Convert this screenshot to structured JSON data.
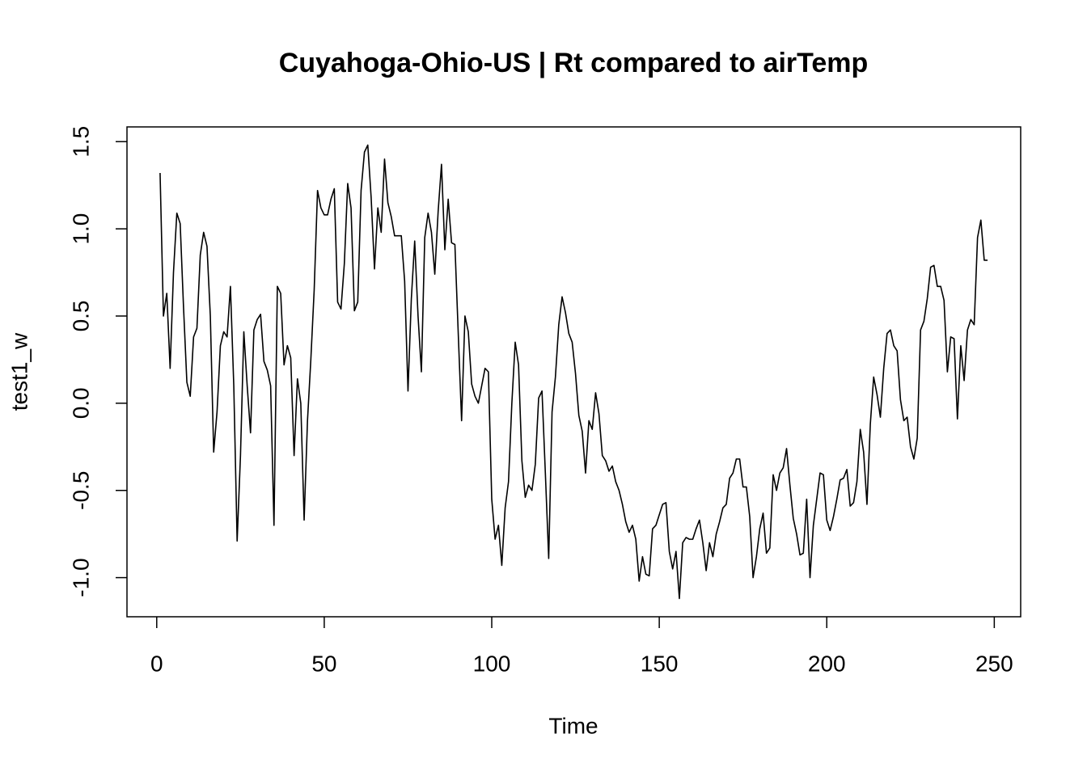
{
  "chart_data": {
    "type": "line",
    "title": "Cuyahoga-Ohio-US | Rt compared to airTemp",
    "xlabel": "Time",
    "ylabel": "test1_w",
    "color": "#000000",
    "x": [
      1,
      2,
      3,
      4,
      5,
      6,
      7,
      8,
      9,
      10,
      11,
      12,
      13,
      14,
      15,
      16,
      17,
      18,
      19,
      20,
      21,
      22,
      23,
      24,
      25,
      26,
      27,
      28,
      29,
      30,
      31,
      32,
      33,
      34,
      35,
      36,
      37,
      38,
      39,
      40,
      41,
      42,
      43,
      44,
      45,
      46,
      47,
      48,
      49,
      50,
      51,
      52,
      53,
      54,
      55,
      56,
      57,
      58,
      59,
      60,
      61,
      62,
      63,
      64,
      65,
      66,
      67,
      68,
      69,
      70,
      71,
      72,
      73,
      74,
      75,
      76,
      77,
      78,
      79,
      80,
      81,
      82,
      83,
      84,
      85,
      86,
      87,
      88,
      89,
      90,
      91,
      92,
      93,
      94,
      95,
      96,
      97,
      98,
      99,
      100,
      101,
      102,
      103,
      104,
      105,
      106,
      107,
      108,
      109,
      110,
      111,
      112,
      113,
      114,
      115,
      116,
      117,
      118,
      119,
      120,
      121,
      122,
      123,
      124,
      125,
      126,
      127,
      128,
      129,
      130,
      131,
      132,
      133,
      134,
      135,
      136,
      137,
      138,
      139,
      140,
      141,
      142,
      143,
      144,
      145,
      146,
      147,
      148,
      149,
      150,
      151,
      152,
      153,
      154,
      155,
      156,
      157,
      158,
      159,
      160,
      161,
      162,
      163,
      164,
      165,
      166,
      167,
      168,
      169,
      170,
      171,
      172,
      173,
      174,
      175,
      176,
      177,
      178,
      179,
      180,
      181,
      182,
      183,
      184,
      185,
      186,
      187,
      188,
      189,
      190,
      191,
      192,
      193,
      194,
      195,
      196,
      197,
      198,
      199,
      200,
      201,
      202,
      203,
      204,
      205,
      206,
      207,
      208,
      209,
      210,
      211,
      212,
      213,
      214,
      215,
      216,
      217,
      218,
      219,
      220,
      221,
      222,
      223,
      224,
      225,
      226,
      227,
      228,
      229,
      230,
      231,
      232,
      233,
      234,
      235,
      236,
      237,
      238,
      239,
      240,
      241,
      242,
      243,
      244,
      245,
      246,
      247,
      248
    ],
    "values": [
      1.32,
      0.5,
      0.63,
      0.2,
      0.75,
      1.09,
      1.03,
      0.55,
      0.12,
      0.04,
      0.38,
      0.43,
      0.85,
      0.98,
      0.9,
      0.5,
      -0.28,
      -0.05,
      0.33,
      0.41,
      0.38,
      0.67,
      0.1,
      -0.79,
      -0.3,
      0.41,
      0.1,
      -0.17,
      0.42,
      0.48,
      0.51,
      0.24,
      0.19,
      0.1,
      -0.7,
      0.67,
      0.63,
      0.22,
      0.33,
      0.26,
      -0.3,
      0.14,
      0.0,
      -0.67,
      -0.1,
      0.25,
      0.65,
      1.22,
      1.12,
      1.08,
      1.08,
      1.17,
      1.23,
      0.58,
      0.54,
      0.8,
      1.26,
      1.12,
      0.53,
      0.58,
      1.22,
      1.44,
      1.48,
      1.18,
      0.77,
      1.12,
      0.98,
      1.4,
      1.15,
      1.07,
      0.96,
      0.96,
      0.96,
      0.7,
      0.07,
      0.6,
      0.93,
      0.5,
      0.18,
      0.95,
      1.09,
      0.98,
      0.74,
      1.1,
      1.37,
      0.88,
      1.17,
      0.92,
      0.91,
      0.4,
      -0.1,
      0.5,
      0.41,
      0.11,
      0.04,
      0.0,
      0.1,
      0.2,
      0.18,
      -0.55,
      -0.78,
      -0.7,
      -0.93,
      -0.6,
      -0.45,
      0.0,
      0.35,
      0.22,
      -0.33,
      -0.54,
      -0.47,
      -0.5,
      -0.35,
      0.03,
      0.07,
      -0.4,
      -0.89,
      -0.05,
      0.15,
      0.45,
      0.61,
      0.52,
      0.4,
      0.35,
      0.17,
      -0.07,
      -0.16,
      -0.4,
      -0.1,
      -0.15,
      0.06,
      -0.06,
      -0.3,
      -0.33,
      -0.39,
      -0.36,
      -0.45,
      -0.5,
      -0.58,
      -0.68,
      -0.74,
      -0.7,
      -0.78,
      -1.02,
      -0.88,
      -0.98,
      -0.99,
      -0.72,
      -0.7,
      -0.64,
      -0.58,
      -0.57,
      -0.85,
      -0.95,
      -0.85,
      -1.12,
      -0.8,
      -0.77,
      -0.78,
      -0.78,
      -0.72,
      -0.67,
      -0.8,
      -0.96,
      -0.8,
      -0.88,
      -0.75,
      -0.68,
      -0.6,
      -0.58,
      -0.43,
      -0.4,
      -0.32,
      -0.32,
      -0.48,
      -0.48,
      -0.65,
      -1.0,
      -0.88,
      -0.72,
      -0.63,
      -0.86,
      -0.83,
      -0.41,
      -0.5,
      -0.4,
      -0.37,
      -0.26,
      -0.47,
      -0.66,
      -0.75,
      -0.87,
      -0.86,
      -0.55,
      -1.0,
      -0.7,
      -0.55,
      -0.4,
      -0.41,
      -0.67,
      -0.73,
      -0.65,
      -0.55,
      -0.44,
      -0.43,
      -0.38,
      -0.59,
      -0.57,
      -0.45,
      -0.15,
      -0.28,
      -0.58,
      -0.12,
      0.15,
      0.05,
      -0.08,
      0.2,
      0.4,
      0.42,
      0.33,
      0.3,
      0.02,
      -0.1,
      -0.08,
      -0.25,
      -0.32,
      -0.2,
      0.42,
      0.47,
      0.6,
      0.78,
      0.79,
      0.67,
      0.67,
      0.59,
      0.18,
      0.38,
      0.37,
      -0.09,
      0.33,
      0.13,
      0.42,
      0.48,
      0.45,
      0.95,
      1.05,
      0.82,
      0.82
    ],
    "xlim": [
      -8.88,
      257.88
    ],
    "xticks": [
      0,
      50,
      100,
      150,
      200,
      250
    ],
    "ylim": [
      -1.2244,
      1.5844
    ],
    "yticks": [
      {
        "value": -1,
        "label": "-1.0"
      },
      -0.5,
      {
        "value": 0,
        "label": "0.0"
      },
      0.5,
      {
        "value": 1,
        "label": "1.0"
      },
      1.5
    ]
  }
}
